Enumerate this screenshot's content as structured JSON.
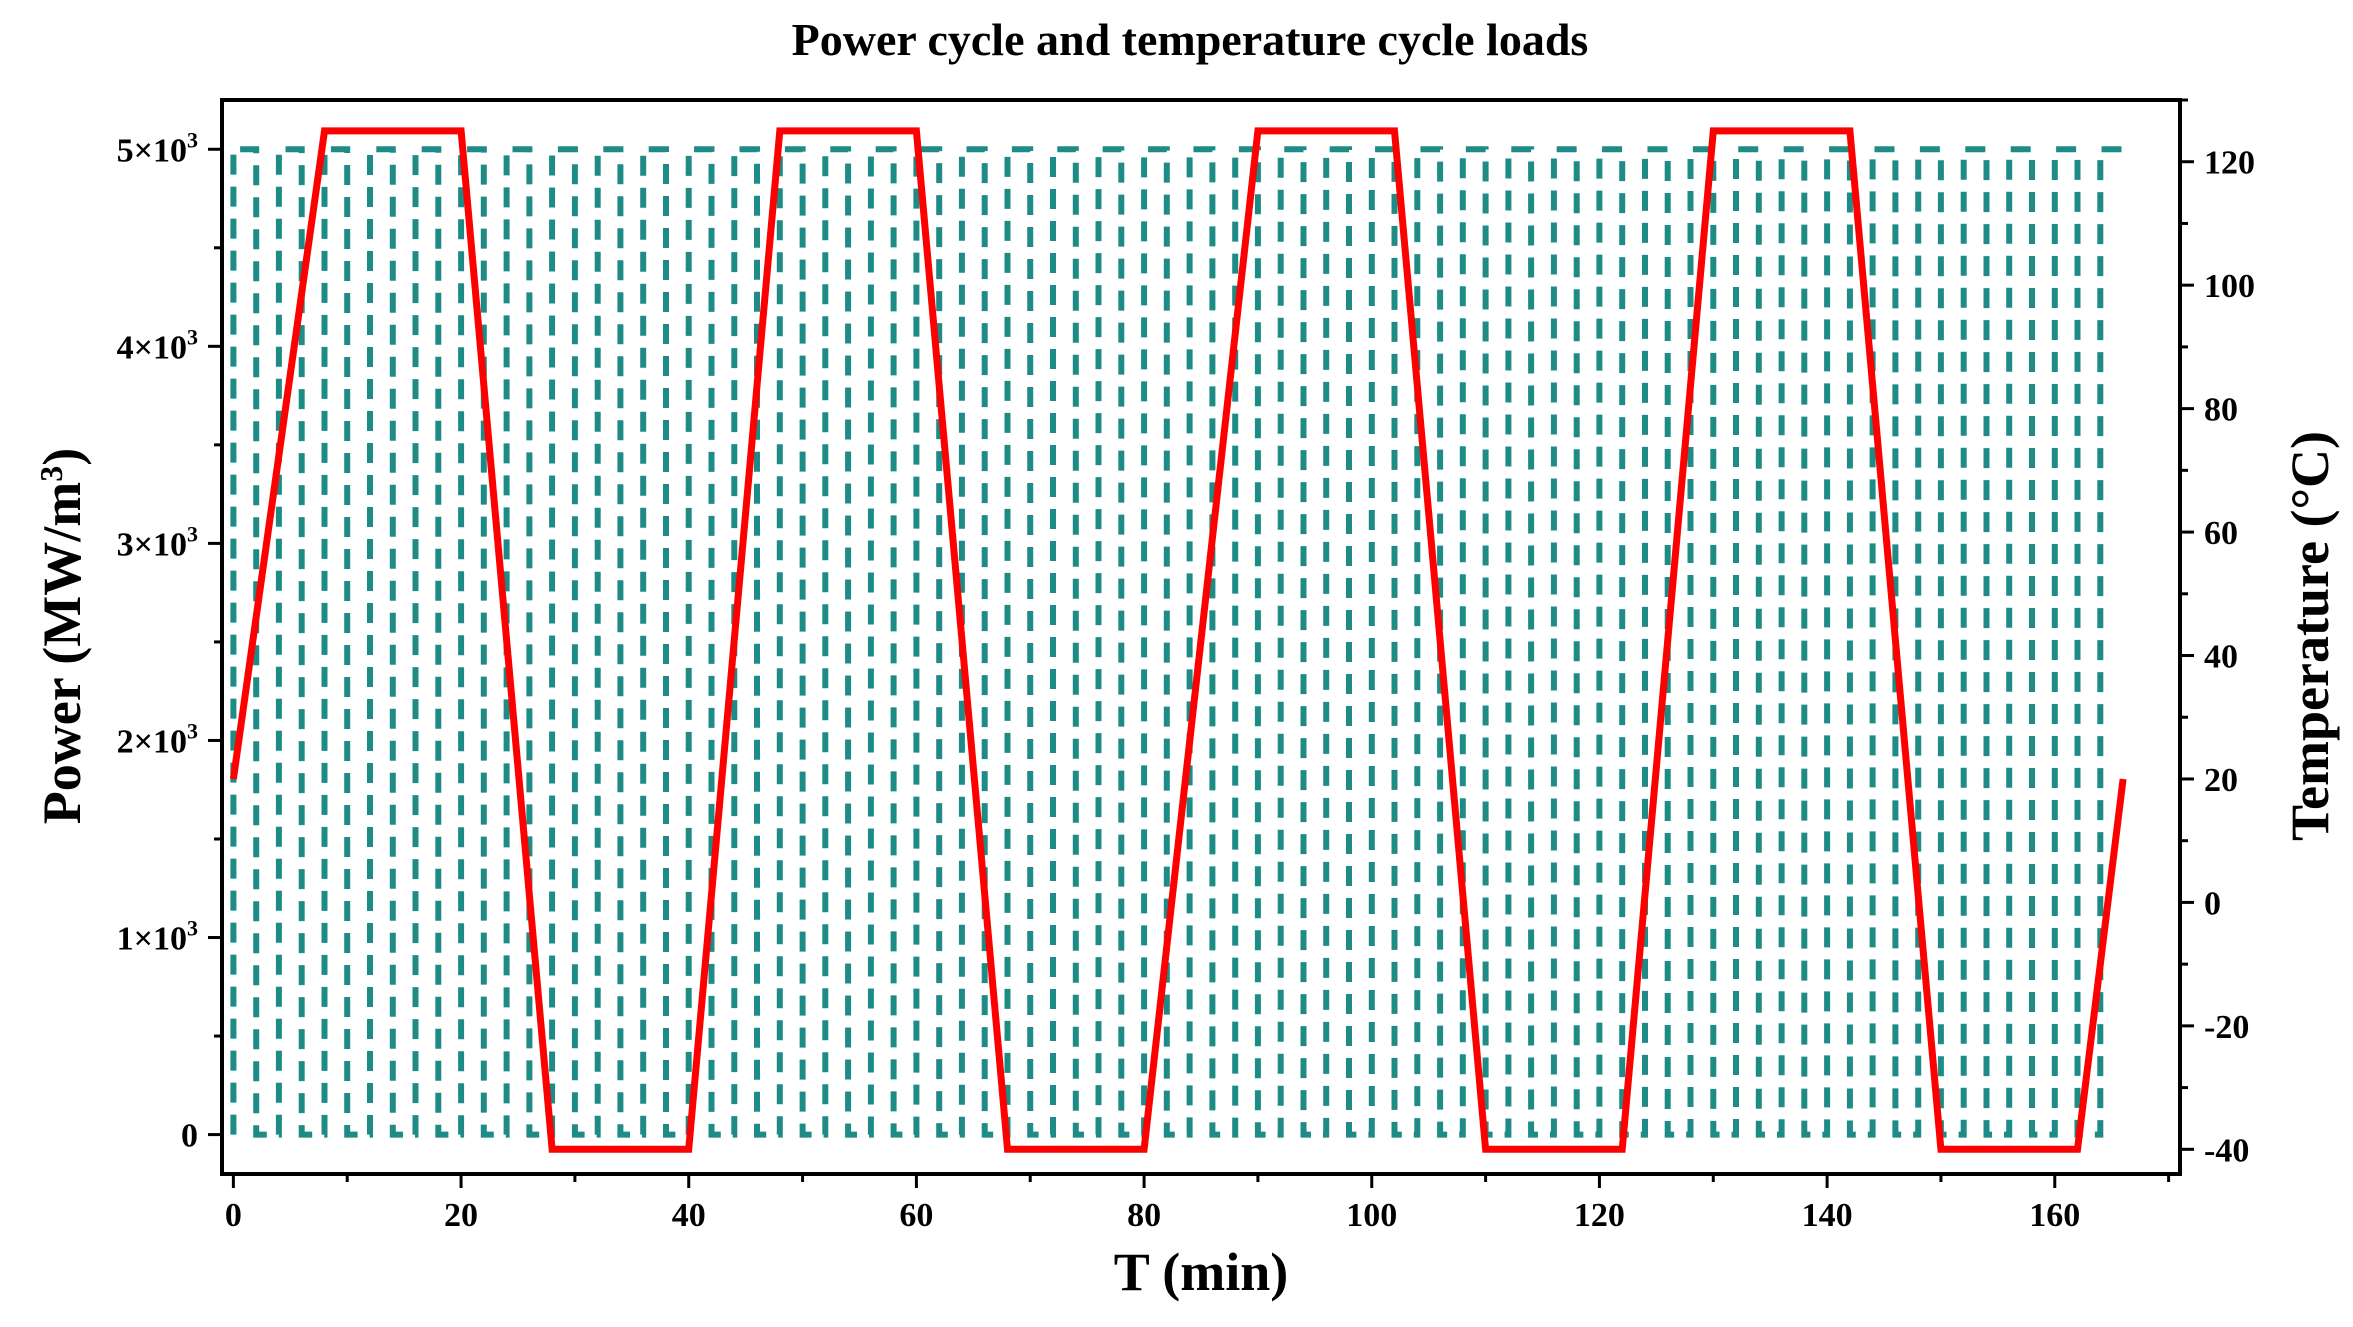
{
  "chart_data": {
    "type": "line",
    "title": "Power cycle and temperature cycle loads",
    "xlabel": "T (min)",
    "ylabel_left": {
      "main": "Power (MW/m",
      "sup": "3",
      "close": ")"
    },
    "ylabel_right": "Temperature (°C)",
    "xlim": [
      -1,
      171
    ],
    "ylim_left": [
      -200,
      5250
    ],
    "ylim_right": [
      -44,
      130
    ],
    "x_ticks": [
      0,
      20,
      40,
      60,
      80,
      100,
      120,
      140,
      160
    ],
    "x_tick_labels": [
      "0",
      "20",
      "40",
      "60",
      "80",
      "100",
      "120",
      "140",
      "160"
    ],
    "y_left_ticks": [
      {
        "value": 0,
        "base": "0",
        "exp": ""
      },
      {
        "value": 1000,
        "base": "1×10",
        "exp": "3"
      },
      {
        "value": 2000,
        "base": "2×10",
        "exp": "3"
      },
      {
        "value": 3000,
        "base": "3×10",
        "exp": "3"
      },
      {
        "value": 4000,
        "base": "4×10",
        "exp": "3"
      },
      {
        "value": 5000,
        "base": "5×10",
        "exp": "3"
      }
    ],
    "y_right_ticks": [
      -40,
      -20,
      0,
      20,
      40,
      60,
      80,
      100,
      120
    ],
    "y_right_tick_labels": [
      "-40",
      "-20",
      "0",
      "20",
      "40",
      "60",
      "80",
      "100",
      "120"
    ],
    "series": [
      {
        "name": "Power cycle",
        "axis": "left",
        "style": "dashed",
        "color": "#1f8b86",
        "low": 0,
        "high": 5000,
        "pulse_on_min": 2,
        "pulse_off_min": 2,
        "x_start": 0,
        "x_end": 166
      },
      {
        "name": "Temperature cycle",
        "axis": "right",
        "style": "solid",
        "color": "#ff0000",
        "x": [
          0,
          8,
          20,
          28,
          40,
          48,
          60,
          68,
          80,
          90,
          102,
          110,
          122,
          130,
          142,
          150,
          162,
          166
        ],
        "y": [
          20,
          125,
          125,
          -40,
          -40,
          125,
          125,
          -40,
          -40,
          125,
          125,
          -40,
          -40,
          125,
          125,
          -40,
          -40,
          20
        ]
      }
    ]
  }
}
